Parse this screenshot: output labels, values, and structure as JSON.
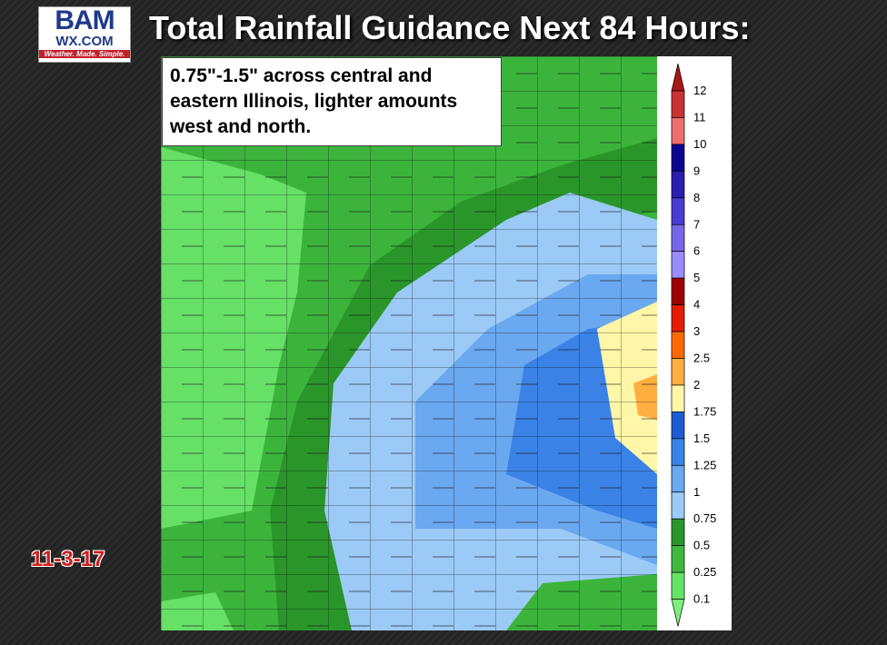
{
  "logo": {
    "mark": "BAM",
    "site": "WX.COM",
    "tagline": "Weather. Made. Simple."
  },
  "title": "Total Rainfall Guidance Next 84 Hours:",
  "annotation": "0.75\"-1.5\" across central and eastern Illinois, lighter amounts west and north.",
  "date": "11-3-17",
  "colorbar": {
    "labels": [
      "12",
      "11",
      "10",
      "9",
      "8",
      "7",
      "6",
      "5",
      "4",
      "3",
      "2.5",
      "2",
      "1.75",
      "1.5",
      "1.25",
      "1",
      "0.75",
      "0.5",
      "0.25",
      "0.1"
    ],
    "colors": [
      "#aa1515",
      "#c83232",
      "#ee6e6e",
      "#0c0590",
      "#2a1eb0",
      "#4a3cd2",
      "#7766ea",
      "#9a8cfc",
      "#9c0000",
      "#e41c00",
      "#ff6a00",
      "#ffae40",
      "#fff6a8",
      "#1c5ed2",
      "#3b82e6",
      "#6aa8f0",
      "#9ccaf6",
      "#2a962a",
      "#40b840",
      "#66e466",
      "#7cf07c"
    ]
  }
}
